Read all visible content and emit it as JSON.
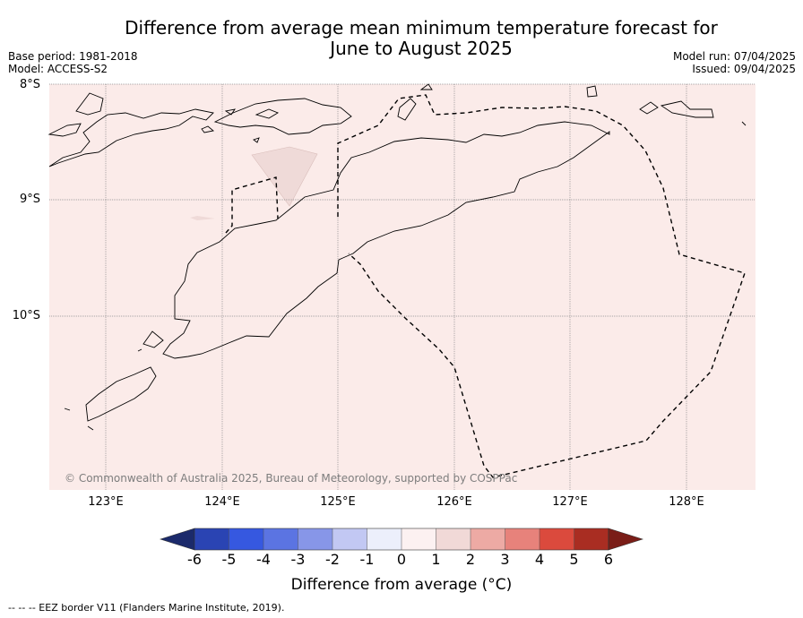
{
  "title": {
    "line1": "Difference from average mean minimum temperature forecast for",
    "line2": "June to August 2025"
  },
  "meta_left": {
    "base_period": "Base period: 1981-2018",
    "model": "Model: ACCESS-S2"
  },
  "meta_right": {
    "model_run": "Model run: 07/04/2025",
    "issued": "Issued: 09/04/2025"
  },
  "map": {
    "latitude_labels": [
      "8°S",
      "9°S",
      "10°S"
    ],
    "longitude_labels": [
      "123°E",
      "124°E",
      "125°E",
      "126°E",
      "127°E",
      "128°E"
    ],
    "copyright": "© Commonwealth of Australia 2025, Bureau of Meteorology, supported by COSPPac",
    "background_category": "0 to 1",
    "colors": {
      "background": "#fbebe9",
      "patch": "#efdad8",
      "grid": "#8a8a8a"
    }
  },
  "colorbar": {
    "tick_labels": [
      "-6",
      "-5",
      "-4",
      "-3",
      "-2",
      "-1",
      "0",
      "1",
      "2",
      "3",
      "4",
      "5",
      "6"
    ],
    "colors": [
      "#1b2a6b",
      "#2a44b3",
      "#3658e0",
      "#5b74e2",
      "#8796e8",
      "#c2c8f3",
      "#eceffb",
      "#fcf1f1",
      "#f1d9d7",
      "#edaaa4",
      "#e7827b",
      "#db4a3d",
      "#a92d22",
      "#7a1d17"
    ],
    "label": "Difference from average (°C)"
  },
  "footnote": "--  --  -- EEZ border V11 (Flanders Marine Institute, 2019)."
}
